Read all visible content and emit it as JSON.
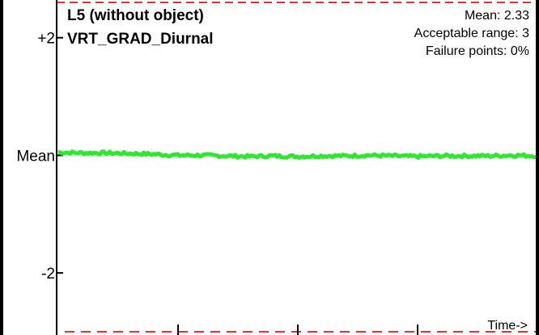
{
  "header": {
    "title_line1": "L5 (without object)",
    "title_line2": "VRT_GRAD_Diurnal"
  },
  "stats": {
    "mean": "Mean: 2.33",
    "acceptable_range": "Acceptable range: 3",
    "failure_points": "Failure points: 0%"
  },
  "chart_data": {
    "type": "line",
    "title": "L5 (without object) VRT_GRAD_Diurnal",
    "xlabel": "Time->",
    "ylabel": "",
    "y_tick_labels": [
      "+2",
      "Mean",
      "-2"
    ],
    "y_ticks": [
      2,
      0,
      -2
    ],
    "ylim": [
      -3,
      2.6
    ],
    "acceptable_limits": [
      -3,
      3
    ],
    "x_range": [
      0,
      1
    ],
    "series": [
      {
        "color": "#2ee82e",
        "x": [
          0,
          0.05,
          0.1,
          0.15,
          0.2,
          0.25,
          0.3,
          0.35,
          0.4,
          0.45,
          0.5,
          0.55,
          0.6,
          0.65,
          0.7,
          0.75,
          0.8,
          0.85,
          0.9,
          0.95,
          1.0
        ],
        "values": [
          0.05,
          0.04,
          0.04,
          0.03,
          0.02,
          0.0,
          0.0,
          -0.01,
          -0.02,
          -0.01,
          -0.02,
          -0.01,
          -0.01,
          0.0,
          -0.01,
          -0.02,
          -0.01,
          -0.01,
          -0.01,
          0.0,
          -0.01
        ]
      }
    ],
    "colors": {
      "limit_line": "#e83030",
      "axis": "#000000"
    }
  }
}
